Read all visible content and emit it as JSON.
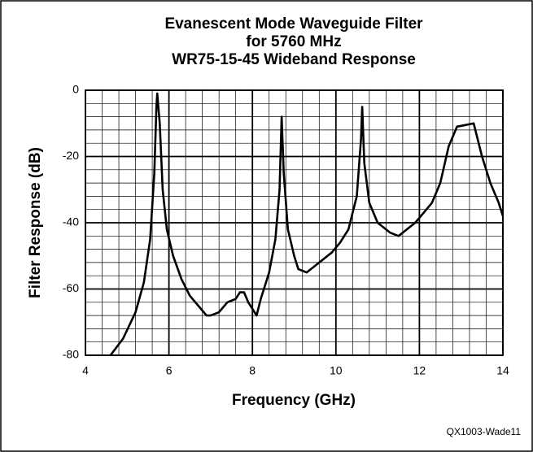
{
  "chart_data": {
    "type": "line",
    "title": [
      "Evanescent Mode Waveguide Filter",
      "for 5760 MHz",
      "WR75-15-45 Wideband Response"
    ],
    "x_label": "Frequency (GHz)",
    "y_label": "Filter Response (dB)",
    "annotation": "QX1003-Wade11",
    "xlim": [
      4,
      14
    ],
    "xticks": [
      4,
      6,
      8,
      10,
      12,
      14
    ],
    "ylim": [
      -80,
      0
    ],
    "yticks": [
      -80,
      -60,
      -40,
      -20,
      0
    ],
    "grid": true,
    "x": [
      4.6,
      4.9,
      5.2,
      5.4,
      5.55,
      5.65,
      5.7,
      5.72,
      5.78,
      5.85,
      5.95,
      6.1,
      6.3,
      6.5,
      6.7,
      6.9,
      7.0,
      7.2,
      7.4,
      7.6,
      7.7,
      7.8,
      7.9,
      8.0,
      8.1,
      8.2,
      8.4,
      8.55,
      8.65,
      8.7,
      8.75,
      8.85,
      9.0,
      9.1,
      9.3,
      9.5,
      9.7,
      9.9,
      10.1,
      10.3,
      10.5,
      10.6,
      10.63,
      10.68,
      10.8,
      11.0,
      11.3,
      11.5,
      11.7,
      11.9,
      12.1,
      12.3,
      12.5,
      12.7,
      12.9,
      13.1,
      13.3,
      13.5,
      13.7,
      13.9,
      14.0
    ],
    "series": [
      {
        "color": "#000000",
        "values": [
          -80,
          -75,
          -67,
          -58,
          -45,
          -25,
          -5,
          -1,
          -10,
          -30,
          -42,
          -50,
          -57,
          -62,
          -65,
          -68,
          -68,
          -67,
          -64,
          -63,
          -61,
          -61,
          -64,
          -66,
          -68,
          -63,
          -55,
          -45,
          -30,
          -8,
          -25,
          -42,
          -50,
          -54,
          -55,
          -53,
          -51,
          -49,
          -46,
          -42,
          -32,
          -15,
          -5,
          -22,
          -34,
          -40,
          -43,
          -44,
          -42,
          -40,
          -37,
          -34,
          -28,
          -17,
          -11,
          -10.5,
          -10,
          -20,
          -28,
          -34,
          -38
        ]
      }
    ]
  }
}
